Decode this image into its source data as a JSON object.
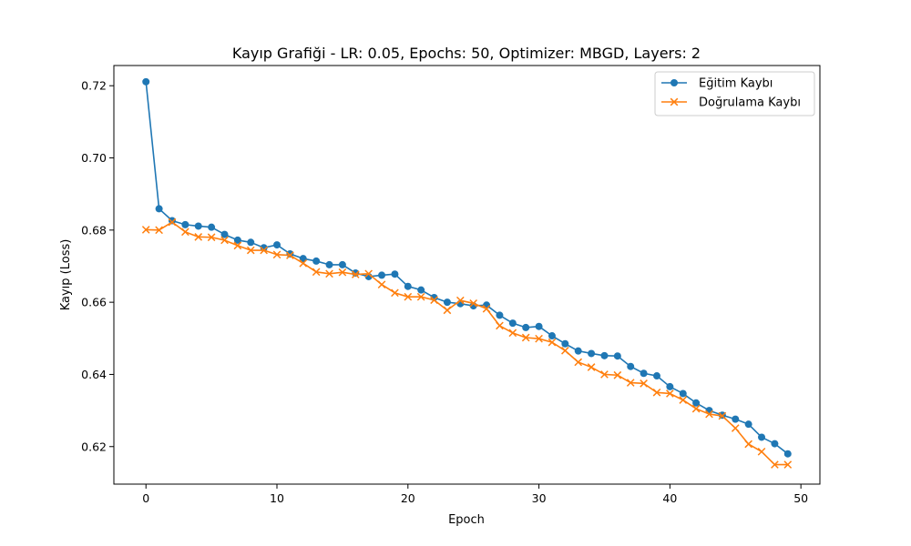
{
  "chart_data": {
    "type": "line",
    "title": "Kayıp Grafiği - LR: 0.05, Epochs: 50, Optimizer: MBGD, Layers: 2",
    "xlabel": "Epoch",
    "ylabel": "Kayıp (Loss)",
    "xlim": [
      -2.45,
      51.45
    ],
    "ylim": [
      0.6096,
      0.7256
    ],
    "xticks": [
      0,
      10,
      20,
      30,
      40,
      50
    ],
    "yticks": [
      0.62,
      0.64,
      0.66,
      0.68,
      0.7,
      0.72
    ],
    "ytick_labels": [
      "0.62",
      "0.64",
      "0.66",
      "0.68",
      "0.70",
      "0.72"
    ],
    "grid": false,
    "legend_position": "top-right",
    "x": [
      0,
      1,
      2,
      3,
      4,
      5,
      6,
      7,
      8,
      9,
      10,
      11,
      12,
      13,
      14,
      15,
      16,
      17,
      18,
      19,
      20,
      21,
      22,
      23,
      24,
      25,
      26,
      27,
      28,
      29,
      30,
      31,
      32,
      33,
      34,
      35,
      36,
      37,
      38,
      39,
      40,
      41,
      42,
      43,
      44,
      45,
      46,
      47,
      48,
      49
    ],
    "series": [
      {
        "name": "Eğitim Kaybı",
        "color": "#1f77b4",
        "marker": "circle",
        "values": [
          0.7211,
          0.6859,
          0.6826,
          0.6815,
          0.6811,
          0.6808,
          0.6788,
          0.6772,
          0.6766,
          0.6751,
          0.6759,
          0.6734,
          0.6721,
          0.6714,
          0.6704,
          0.6704,
          0.6681,
          0.6671,
          0.6675,
          0.6678,
          0.6644,
          0.6634,
          0.6613,
          0.66,
          0.6596,
          0.659,
          0.6592,
          0.6564,
          0.6542,
          0.653,
          0.6533,
          0.6507,
          0.6485,
          0.6465,
          0.6458,
          0.6452,
          0.6451,
          0.6422,
          0.6403,
          0.6396,
          0.6366,
          0.6347,
          0.6321,
          0.63,
          0.6287,
          0.6276,
          0.6262,
          0.6226,
          0.6208,
          0.618
        ]
      },
      {
        "name": "Doğrulama Kaybı",
        "color": "#ff7f0e",
        "marker": "x",
        "values": [
          0.6801,
          0.68,
          0.6822,
          0.6795,
          0.6781,
          0.678,
          0.6772,
          0.6757,
          0.6744,
          0.6744,
          0.6732,
          0.673,
          0.6708,
          0.6684,
          0.6679,
          0.6683,
          0.6677,
          0.6679,
          0.6649,
          0.6626,
          0.6615,
          0.6615,
          0.6606,
          0.6578,
          0.6605,
          0.6597,
          0.6582,
          0.6535,
          0.6515,
          0.6502,
          0.6499,
          0.6489,
          0.6466,
          0.6434,
          0.642,
          0.64,
          0.6398,
          0.6377,
          0.6375,
          0.635,
          0.6347,
          0.6329,
          0.6305,
          0.629,
          0.6285,
          0.6251,
          0.6207,
          0.6186,
          0.615,
          0.615
        ]
      }
    ]
  }
}
